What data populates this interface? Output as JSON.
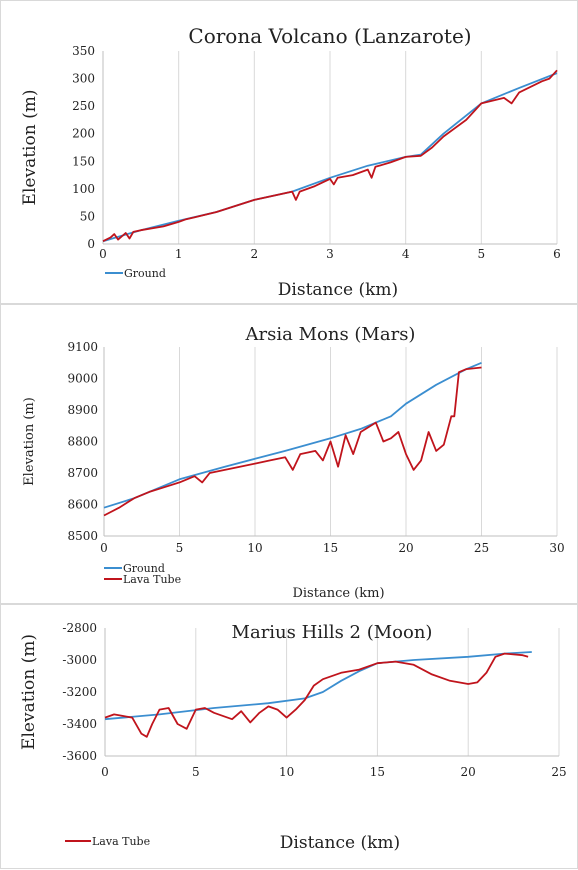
{
  "colors": {
    "ground": "#3b8ed0",
    "lava": "#c0141c",
    "grid": "#d9d9d9",
    "axis": "#bfbfbf"
  },
  "chart_data": [
    {
      "type": "line",
      "title": "Corona Volcano (Lanzarote)",
      "xlabel": "Distance (km)",
      "ylabel": "Elevation (m)",
      "xlim": [
        0,
        6
      ],
      "ylim": [
        0,
        350
      ],
      "xticks": [
        0,
        1,
        2,
        3,
        4,
        5,
        6
      ],
      "yticks": [
        0,
        50,
        100,
        150,
        200,
        250,
        300,
        350
      ],
      "grid": "vertical",
      "legend": "bottom-left",
      "legend_entries": [
        "Ground"
      ],
      "series": [
        {
          "name": "Ground",
          "color": "ground",
          "x": [
            0,
            0.5,
            1,
            1.5,
            2,
            2.5,
            3,
            3.5,
            4,
            4.2,
            4.5,
            5,
            5.5,
            6
          ],
          "y": [
            5,
            25,
            42,
            58,
            80,
            95,
            120,
            142,
            158,
            162,
            200,
            255,
            283,
            310
          ]
        },
        {
          "color": "lava",
          "x": [
            0,
            0.1,
            0.15,
            0.2,
            0.3,
            0.35,
            0.4,
            0.5,
            0.8,
            1,
            1.1,
            1.2,
            1.5,
            2,
            2.5,
            2.55,
            2.6,
            2.7,
            2.8,
            3,
            3.05,
            3.1,
            3.3,
            3.5,
            3.55,
            3.6,
            3.8,
            4,
            4.2,
            4.35,
            4.5,
            4.8,
            4.9,
            5,
            5.3,
            5.4,
            5.5,
            5.8,
            5.9,
            6
          ],
          "y": [
            5,
            12,
            18,
            8,
            20,
            10,
            22,
            25,
            32,
            40,
            45,
            48,
            58,
            80,
            95,
            80,
            95,
            100,
            105,
            118,
            108,
            120,
            125,
            135,
            120,
            140,
            148,
            158,
            160,
            175,
            195,
            225,
            240,
            255,
            265,
            255,
            275,
            295,
            300,
            315
          ]
        }
      ]
    },
    {
      "type": "line",
      "title": "Arsia Mons (Mars)",
      "xlabel": "Distance (km)",
      "ylabel": "Elevation (m)",
      "xlim": [
        0,
        30
      ],
      "ylim": [
        8500,
        9100
      ],
      "xticks": [
        0,
        5,
        10,
        15,
        20,
        25,
        30
      ],
      "yticks": [
        8500,
        8600,
        8700,
        8800,
        8900,
        9000,
        9100
      ],
      "grid": "vertical",
      "legend": "bottom-left",
      "legend_entries": [
        "Ground",
        "Lava Tube"
      ],
      "series": [
        {
          "name": "Ground",
          "color": "ground",
          "x": [
            0,
            2,
            5,
            8,
            10,
            12,
            15,
            17,
            18,
            19,
            20,
            22,
            24,
            25
          ],
          "y": [
            8590,
            8620,
            8680,
            8720,
            8745,
            8770,
            8810,
            8840,
            8860,
            8880,
            8920,
            8980,
            9030,
            9050
          ]
        },
        {
          "name": "Lava Tube",
          "color": "lava",
          "x": [
            0,
            1,
            2,
            3,
            4,
            5,
            6,
            6.5,
            7,
            8,
            9,
            10,
            11,
            12,
            12.5,
            13,
            14,
            14.5,
            15,
            15.5,
            16,
            16.5,
            17,
            18,
            18.5,
            19,
            19.5,
            20,
            20.5,
            21,
            21.5,
            22,
            22.5,
            23,
            23.2,
            23.5,
            24,
            25
          ],
          "y": [
            8565,
            8590,
            8620,
            8640,
            8655,
            8670,
            8690,
            8670,
            8700,
            8710,
            8720,
            8730,
            8740,
            8750,
            8710,
            8760,
            8770,
            8740,
            8800,
            8720,
            8820,
            8760,
            8830,
            8860,
            8800,
            8810,
            8830,
            8760,
            8710,
            8740,
            8830,
            8770,
            8790,
            8880,
            8880,
            9020,
            9030,
            9035
          ]
        }
      ]
    },
    {
      "type": "line",
      "title": "Marius Hills 2 (Moon)",
      "xlabel": "Distance (km)",
      "ylabel": "Elevation (m)",
      "xlim": [
        0,
        25
      ],
      "ylim": [
        -3600,
        -2800
      ],
      "xticks": [
        0,
        5,
        10,
        15,
        20,
        25
      ],
      "yticks": [
        -2800,
        -3000,
        -3200,
        -3400,
        -3600
      ],
      "grid": "vertical",
      "legend": "bottom-left",
      "legend_entries": [
        "Lava Tube"
      ],
      "series": [
        {
          "color": "ground",
          "x": [
            0,
            3,
            6,
            9,
            11,
            12,
            13,
            14,
            15,
            17,
            20,
            22,
            23.5
          ],
          "y": [
            -3370,
            -3340,
            -3300,
            -3270,
            -3240,
            -3200,
            -3130,
            -3070,
            -3020,
            -3000,
            -2980,
            -2960,
            -2950
          ]
        },
        {
          "name": "Lava Tube",
          "color": "lava",
          "x": [
            0,
            0.5,
            1,
            1.5,
            2,
            2.3,
            2.6,
            3,
            3.5,
            4,
            4.5,
            5,
            5.5,
            6,
            7,
            7.5,
            8,
            8.5,
            9,
            9.5,
            10,
            10.5,
            11,
            11.5,
            12,
            13,
            14,
            15,
            16,
            17,
            18,
            19,
            20,
            20.5,
            21,
            21.5,
            22,
            23,
            23.3
          ],
          "y": [
            -3360,
            -3340,
            -3350,
            -3360,
            -3460,
            -3480,
            -3400,
            -3310,
            -3300,
            -3400,
            -3430,
            -3310,
            -3300,
            -3330,
            -3370,
            -3320,
            -3390,
            -3330,
            -3290,
            -3310,
            -3360,
            -3310,
            -3250,
            -3160,
            -3120,
            -3080,
            -3060,
            -3020,
            -3010,
            -3030,
            -3090,
            -3130,
            -3150,
            -3140,
            -3080,
            -2980,
            -2960,
            -2970,
            -2980
          ]
        }
      ]
    }
  ]
}
